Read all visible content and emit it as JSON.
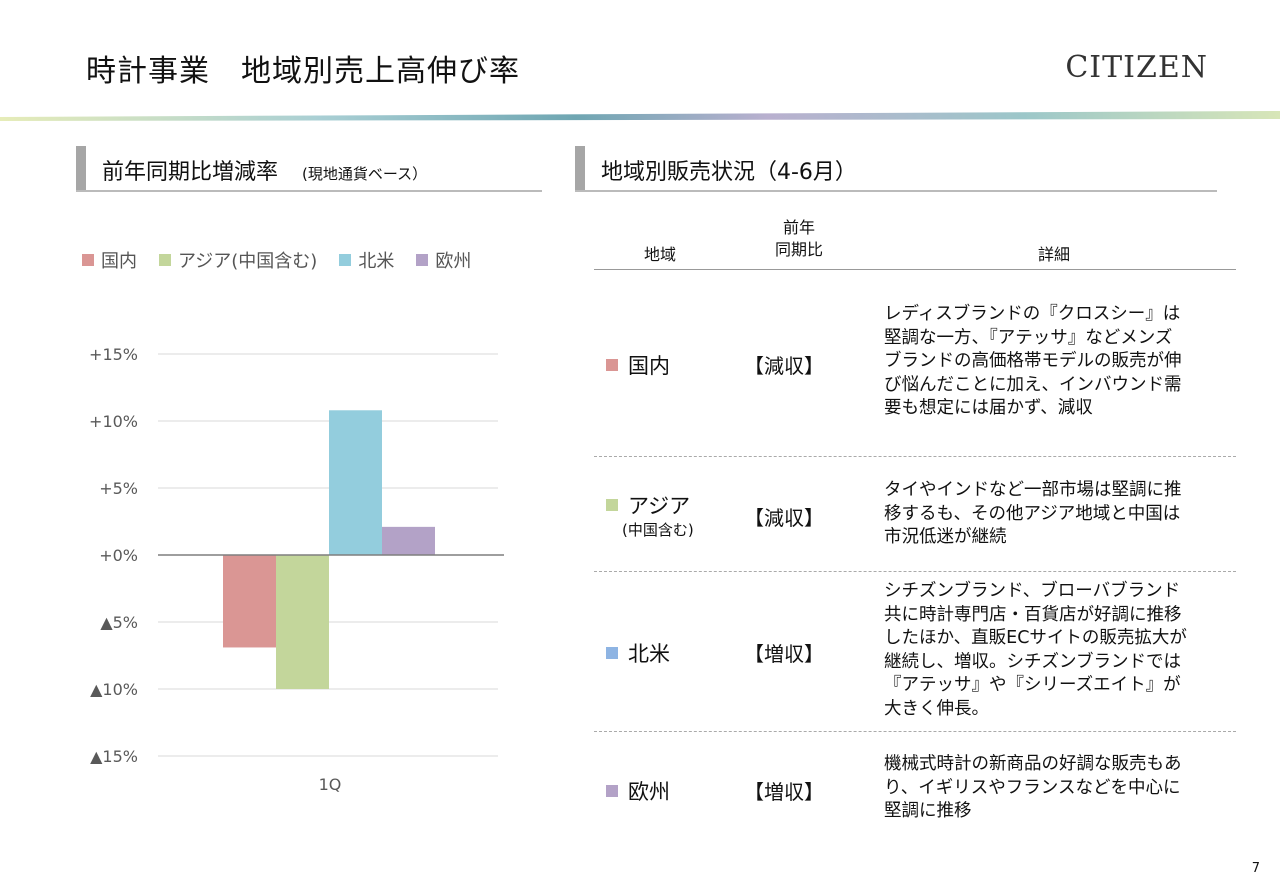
{
  "header": {
    "title": "時計事業　地域別売上高伸び率",
    "logo": "CITIZEN",
    "page_number": "7"
  },
  "left_section": {
    "title": "前年同期比増減率",
    "subtitle": "(現地通貨ベース）"
  },
  "right_section": {
    "title": "地域別販売状況（4-6月）"
  },
  "colors": {
    "domestic": "#da9694",
    "asia": "#c3d69b",
    "north_america": "#93cddd",
    "europe": "#b3a2c7",
    "na_table_marker": "#8eb4e3"
  },
  "chart_data": {
    "type": "bar",
    "categories": [
      "1Q"
    ],
    "series": [
      {
        "name": "国内",
        "values": [
          -6.9
        ]
      },
      {
        "name": "アジア(中国含む)",
        "values": [
          -10.0
        ]
      },
      {
        "name": "北米",
        "values": [
          10.8
        ]
      },
      {
        "name": "欧州",
        "values": [
          2.1
        ]
      }
    ],
    "ylim": [
      -15,
      15
    ],
    "yticks": [
      15,
      10,
      5,
      0,
      -5,
      -10,
      -15
    ],
    "ytick_labels": [
      "+15%",
      "+10%",
      "+5%",
      "+0%",
      "▲5%",
      "▲10%",
      "▲15%"
    ],
    "grid": true,
    "legend": "top"
  },
  "table": {
    "headers": {
      "region": "地域",
      "yoy_line1": "前年",
      "yoy_line2": "同期比",
      "detail": "詳細"
    },
    "rows": [
      {
        "region": "国内",
        "region_sub": "",
        "result": "【減収】",
        "detail_lines": [
          "レディスブランドの『クロスシー』は",
          "堅調な一方、『アテッサ』などメンズ",
          "ブランドの高価格帯モデルの販売が伸",
          "び悩んだことに加え、インバウンド需",
          "要も想定には届かず、減収"
        ]
      },
      {
        "region": "アジア",
        "region_sub": "(中国含む)",
        "result": "【減収】",
        "detail_lines": [
          "タイやインドなど一部市場は堅調に推",
          "移するも、その他アジア地域と中国は",
          "市況低迷が継続"
        ]
      },
      {
        "region": "北米",
        "region_sub": "",
        "result": "【増収】",
        "detail_lines": [
          "シチズンブランド、ブローバブランド",
          "共に時計専門店・百貨店が好調に推移",
          "したほか、直販ECサイトの販売拡大が",
          "継続し、増収。シチズンブランドでは",
          "『アテッサ』や『シリーズエイト』が",
          "大きく伸長。"
        ]
      },
      {
        "region": "欧州",
        "region_sub": "",
        "result": "【増収】",
        "detail_lines": [
          "機械式時計の新商品の好調な販売もあ",
          "り、イギリスやフランスなどを中心に",
          "堅調に推移"
        ]
      }
    ]
  }
}
